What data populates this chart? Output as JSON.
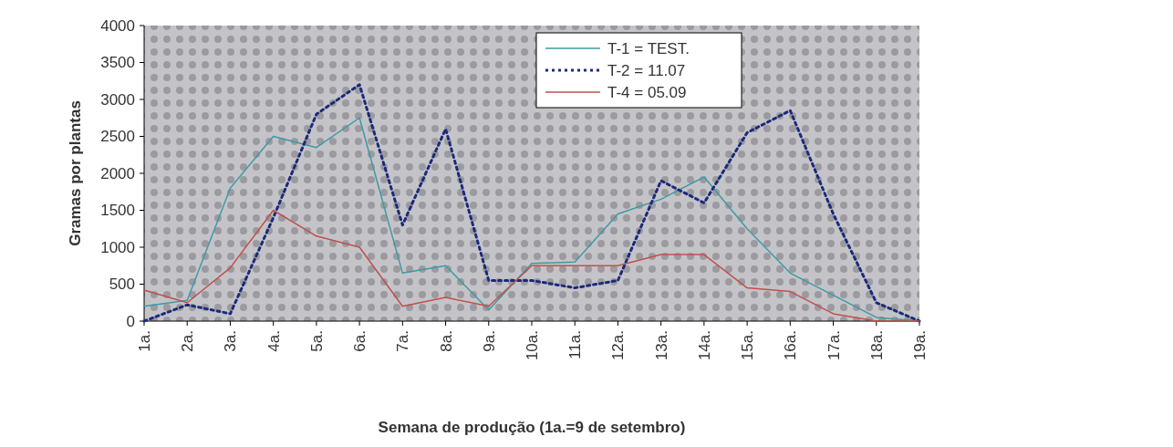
{
  "chart_data": {
    "type": "line",
    "xlabel": "Semana de produção (1a.=9 de setembro)",
    "ylabel": "Gramas por plantas",
    "categories": [
      "1a.",
      "2a.",
      "3a.",
      "4a.",
      "5a.",
      "6a.",
      "7a.",
      "8a.",
      "9a.",
      "10a.",
      "11a.",
      "12a.",
      "13a.",
      "14a.",
      "15a.",
      "16a.",
      "17a.",
      "18a.",
      "19a."
    ],
    "series": [
      {
        "name": "T-1 = TEST.",
        "color": "#3f9aa3",
        "line_style": "solid",
        "values": [
          200,
          280,
          1800,
          2500,
          2350,
          2750,
          650,
          750,
          150,
          780,
          800,
          1450,
          1650,
          1950,
          1250,
          650,
          350,
          50,
          0
        ]
      },
      {
        "name": "T-2 = 11.07",
        "color": "#1c2a7a",
        "line_style": "dotted",
        "values": [
          0,
          220,
          100,
          1400,
          2800,
          3200,
          1300,
          2600,
          550,
          550,
          450,
          550,
          1900,
          1600,
          2550,
          2850,
          1450,
          250,
          0
        ]
      },
      {
        "name": "T-4 = 05.09",
        "color": "#c0504d",
        "line_style": "solid",
        "values": [
          420,
          250,
          720,
          1500,
          1150,
          1000,
          200,
          320,
          200,
          750,
          750,
          750,
          900,
          900,
          450,
          400,
          100,
          0,
          0
        ]
      }
    ],
    "ylim": [
      0,
      4000
    ],
    "yticks": [
      0,
      500,
      1000,
      1500,
      2000,
      2500,
      3000,
      3500,
      4000
    ],
    "grid": false,
    "legend": "top right"
  }
}
